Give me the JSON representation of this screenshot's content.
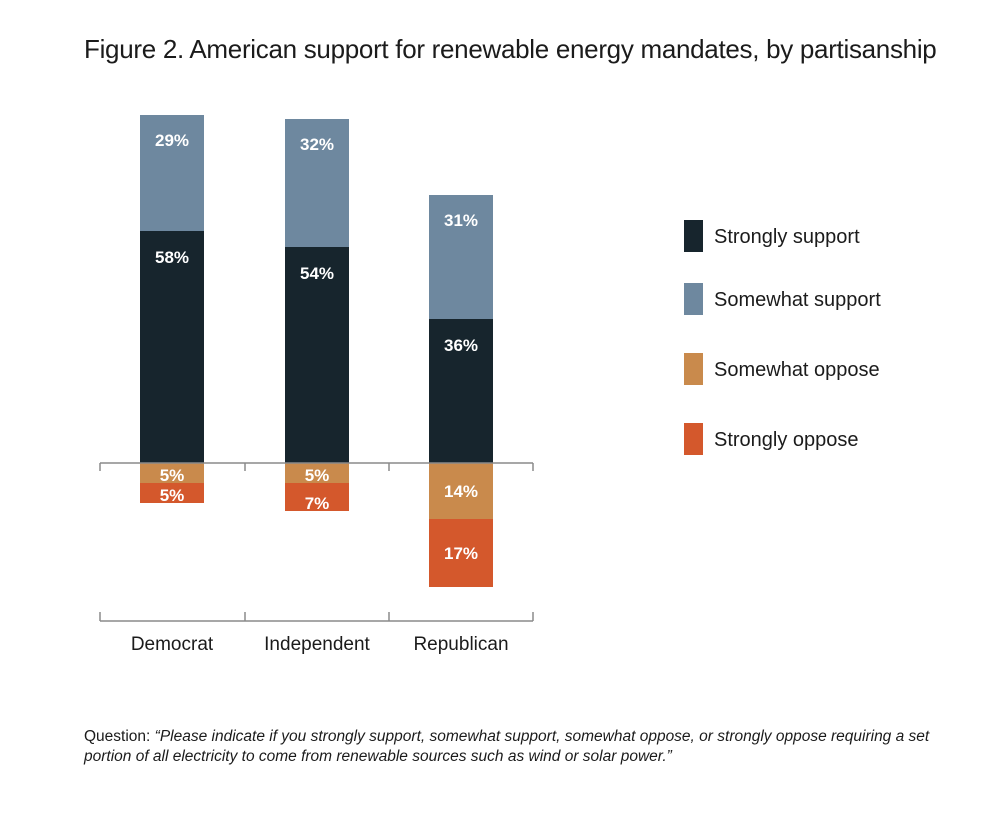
{
  "title": "Figure 2.  American support for renewable energy mandates, by partisanship",
  "caption": {
    "label": "Question: ",
    "question": "“Please indicate if you strongly support, somewhat support, somewhat oppose, or strongly oppose requiring a set portion of all electricity to come from renewable sources such as wind or solar power.”"
  },
  "chart_data": {
    "type": "bar",
    "subtype": "diverging-stacked",
    "title": "Figure 2.  American support for renewable energy mandates, by partisanship",
    "categories": [
      "Democrat",
      "Independent",
      "Republican"
    ],
    "unit": "%",
    "series": [
      {
        "name": "Strongly support",
        "direction": "positive",
        "color": "#17252d",
        "values": [
          58,
          54,
          36
        ],
        "labels": [
          "58%",
          "54%",
          "36%"
        ]
      },
      {
        "name": "Somewhat support",
        "direction": "positive",
        "color": "#6e889f",
        "values": [
          29,
          32,
          31
        ],
        "labels": [
          "29%",
          "32%",
          "31%"
        ]
      },
      {
        "name": "Somewhat oppose",
        "direction": "negative",
        "color": "#c98a4c",
        "values": [
          5,
          5,
          14
        ],
        "labels": [
          "5%",
          "5%",
          "14%"
        ]
      },
      {
        "name": "Strongly oppose",
        "direction": "negative",
        "color": "#d4582c",
        "values": [
          5,
          7,
          17
        ],
        "labels": [
          "5%",
          "7%",
          "17%"
        ]
      }
    ],
    "legend_position": "right",
    "grid": false
  }
}
